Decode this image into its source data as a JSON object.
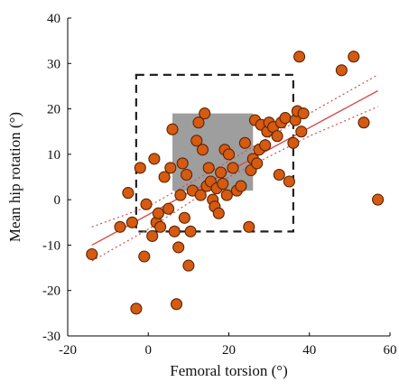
{
  "chart_data": {
    "type": "scatter",
    "xlabel": "Femoral torsion (°)",
    "ylabel": "Mean hip rotation (°)",
    "xlim": [
      -20,
      60
    ],
    "ylim": [
      -30,
      40
    ],
    "xticks": [
      -20,
      0,
      20,
      40,
      60
    ],
    "yticks": [
      -30,
      -20,
      -10,
      0,
      10,
      20,
      30,
      40
    ],
    "grid": false,
    "colors": {
      "marker_fill": "#d55a12",
      "marker_edge": "#5a2300",
      "fit_line": "#d94b4b",
      "shaded_region": "#9e9e9e",
      "dashed_box": "#222222"
    },
    "points": [
      {
        "x": -14,
        "y": -12
      },
      {
        "x": -7,
        "y": -6
      },
      {
        "x": -5,
        "y": 1.5
      },
      {
        "x": -4,
        "y": -5
      },
      {
        "x": -3,
        "y": -24
      },
      {
        "x": -2,
        "y": 7
      },
      {
        "x": -1,
        "y": -12.5
      },
      {
        "x": -0.5,
        "y": -1
      },
      {
        "x": 1,
        "y": -8
      },
      {
        "x": 1.5,
        "y": 9
      },
      {
        "x": 2,
        "y": -5
      },
      {
        "x": 2.5,
        "y": -3
      },
      {
        "x": 3,
        "y": -6
      },
      {
        "x": 4,
        "y": 5
      },
      {
        "x": 5,
        "y": -2
      },
      {
        "x": 5.5,
        "y": 7
      },
      {
        "x": 6,
        "y": 15.5
      },
      {
        "x": 6.5,
        "y": -7
      },
      {
        "x": 7,
        "y": -23
      },
      {
        "x": 7.5,
        "y": -10.5
      },
      {
        "x": 8,
        "y": 1
      },
      {
        "x": 8.5,
        "y": 8
      },
      {
        "x": 9,
        "y": -4
      },
      {
        "x": 9.5,
        "y": 5.5
      },
      {
        "x": 10,
        "y": -14.5
      },
      {
        "x": 10.5,
        "y": -7
      },
      {
        "x": 11,
        "y": 2
      },
      {
        "x": 12,
        "y": 13
      },
      {
        "x": 12.5,
        "y": 17
      },
      {
        "x": 13,
        "y": 1
      },
      {
        "x": 13.5,
        "y": 11
      },
      {
        "x": 14,
        "y": 19
      },
      {
        "x": 14.5,
        "y": 3
      },
      {
        "x": 15,
        "y": 7
      },
      {
        "x": 15.5,
        "y": 4
      },
      {
        "x": 16,
        "y": 0
      },
      {
        "x": 16.5,
        "y": -1.5
      },
      {
        "x": 17,
        "y": 2.5
      },
      {
        "x": 17.5,
        "y": -3
      },
      {
        "x": 18,
        "y": 6
      },
      {
        "x": 18.5,
        "y": 3.5
      },
      {
        "x": 19,
        "y": 11
      },
      {
        "x": 19.5,
        "y": 1
      },
      {
        "x": 20,
        "y": 10
      },
      {
        "x": 21,
        "y": 7
      },
      {
        "x": 22,
        "y": 2
      },
      {
        "x": 23,
        "y": 3
      },
      {
        "x": 24,
        "y": 12.5
      },
      {
        "x": 25,
        "y": -6
      },
      {
        "x": 25.5,
        "y": 6.5
      },
      {
        "x": 26,
        "y": 9
      },
      {
        "x": 26.5,
        "y": 17.5
      },
      {
        "x": 27,
        "y": 8
      },
      {
        "x": 27.5,
        "y": 11
      },
      {
        "x": 28,
        "y": 16.5
      },
      {
        "x": 29,
        "y": 12
      },
      {
        "x": 29.5,
        "y": 15
      },
      {
        "x": 30,
        "y": 17
      },
      {
        "x": 31,
        "y": 16
      },
      {
        "x": 32,
        "y": 14
      },
      {
        "x": 32.5,
        "y": 5.5
      },
      {
        "x": 33,
        "y": 17
      },
      {
        "x": 34,
        "y": 18
      },
      {
        "x": 35,
        "y": 4
      },
      {
        "x": 36,
        "y": 12.5
      },
      {
        "x": 36.5,
        "y": 17.5
      },
      {
        "x": 37,
        "y": 19.5
      },
      {
        "x": 37.5,
        "y": 31.5
      },
      {
        "x": 38,
        "y": 15
      },
      {
        "x": 38.5,
        "y": 19
      },
      {
        "x": 48,
        "y": 28.5
      },
      {
        "x": 51,
        "y": 31.5
      },
      {
        "x": 53.5,
        "y": 17
      },
      {
        "x": 57,
        "y": 0
      }
    ],
    "fit_line": {
      "x1": -14,
      "y1": -10,
      "x2": 57,
      "y2": 24
    },
    "confidence_band": {
      "upper": [
        [
          -14,
          -6
        ],
        [
          0,
          -1.5
        ],
        [
          20,
          8.5
        ],
        [
          40,
          19
        ],
        [
          57,
          27.5
        ]
      ],
      "lower": [
        [
          -14,
          -13.5
        ],
        [
          0,
          -6.5
        ],
        [
          20,
          5
        ],
        [
          40,
          14
        ],
        [
          57,
          20.5
        ]
      ]
    },
    "shaded_region": {
      "x": [
        6,
        26
      ],
      "y": [
        2,
        19
      ]
    },
    "dashed_box": {
      "x": [
        -3,
        36
      ],
      "y": [
        -7,
        27.5
      ]
    }
  }
}
